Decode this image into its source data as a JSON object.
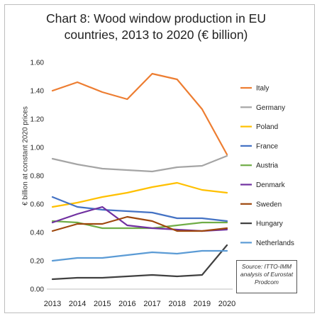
{
  "chart_data": {
    "type": "line",
    "title": "Chart 8: Wood window production in EU countries, 2013 to 2020 (€ billion)",
    "title_lines": [
      "Chart 8: Wood window production in EU",
      "countries, 2013 to 2020 (€ billion)"
    ],
    "xlabel": "",
    "ylabel": "€ billion at constant 2020 prices",
    "x": [
      "2013",
      "2014",
      "2015",
      "2016",
      "2017",
      "2018",
      "2019",
      "2020"
    ],
    "ylim": [
      0,
      1.6
    ],
    "yticks": [
      "0.00",
      "0.20",
      "0.40",
      "0.60",
      "0.80",
      "1.00",
      "1.20",
      "1.40",
      "1.60"
    ],
    "grid": false,
    "legend_placement": "right",
    "series": [
      {
        "name": "Italy",
        "color": "#ED7D31",
        "values": [
          1.4,
          1.46,
          1.39,
          1.34,
          1.52,
          1.48,
          1.27,
          0.95
        ]
      },
      {
        "name": "Germany",
        "color": "#A5A5A5",
        "values": [
          0.92,
          0.88,
          0.85,
          0.84,
          0.83,
          0.86,
          0.87,
          0.94
        ]
      },
      {
        "name": "Poland",
        "color": "#FFC000",
        "values": [
          0.58,
          0.61,
          0.65,
          0.68,
          0.72,
          0.75,
          0.7,
          0.68
        ]
      },
      {
        "name": "France",
        "color": "#4472C4",
        "values": [
          0.65,
          0.58,
          0.56,
          0.55,
          0.54,
          0.5,
          0.5,
          0.48
        ]
      },
      {
        "name": "Austria",
        "color": "#70AD47",
        "values": [
          0.48,
          0.47,
          0.43,
          0.43,
          0.43,
          0.45,
          0.47,
          0.47
        ]
      },
      {
        "name": "Denmark",
        "color": "#7030A0",
        "values": [
          0.47,
          0.53,
          0.58,
          0.45,
          0.43,
          0.42,
          0.41,
          0.42
        ]
      },
      {
        "name": "Sweden",
        "color": "#9E480E",
        "values": [
          0.41,
          0.46,
          0.46,
          0.51,
          0.48,
          0.41,
          0.41,
          0.43
        ]
      },
      {
        "name": "Hungary",
        "color": "#404040",
        "values": [
          0.07,
          0.08,
          0.08,
          0.09,
          0.1,
          0.09,
          0.1,
          0.31
        ]
      },
      {
        "name": "Netherlands",
        "color": "#5B9BD5",
        "values": [
          0.2,
          0.22,
          0.22,
          0.24,
          0.26,
          0.25,
          0.27,
          0.27
        ]
      }
    ],
    "source_note": "Source: ITTO-IMM analysis of Eurostat Prodcom"
  }
}
